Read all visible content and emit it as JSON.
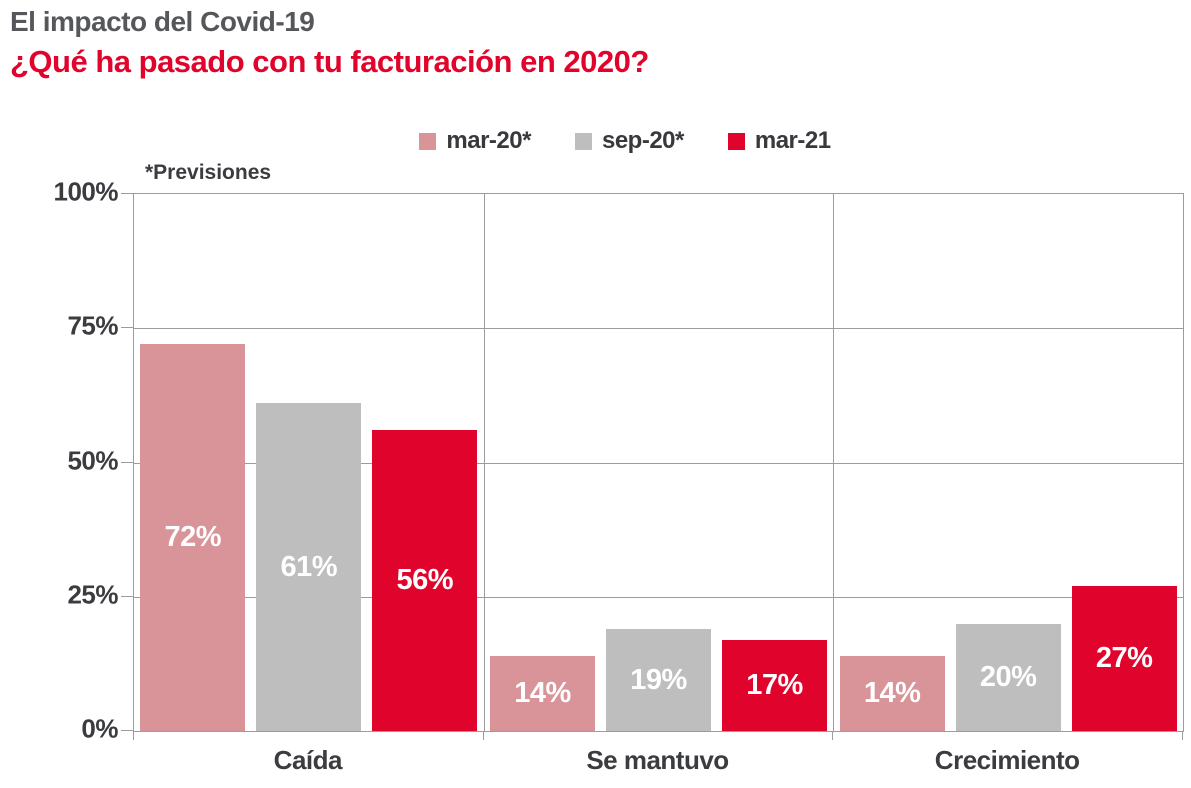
{
  "header": {
    "title": "El impacto del Covid-19",
    "subtitle": "¿Qué ha pasado con tu facturación en 2020?"
  },
  "chart_data": {
    "type": "bar",
    "title": "¿Qué ha pasado con tu facturación en 2020?",
    "note": "*Previsiones",
    "categories": [
      "Caída",
      "Se mantuvo",
      "Crecimiento"
    ],
    "series": [
      {
        "name": "mar-20*",
        "color": "#d9949a",
        "values": [
          72,
          14,
          14
        ]
      },
      {
        "name": "sep-20*",
        "color": "#bebebe",
        "values": [
          61,
          19,
          20
        ]
      },
      {
        "name": "mar-21",
        "color": "#e0042c",
        "values": [
          56,
          17,
          27
        ]
      }
    ],
    "value_suffix": "%",
    "y_axis": {
      "min": 0,
      "max": 100,
      "ticks": [
        "100%",
        "75%",
        "50%",
        "25%",
        "0%"
      ]
    },
    "legend_position": "top",
    "grid": true,
    "colors": {
      "accent_red": "#e0042c",
      "muted_pink": "#d9949a",
      "neutral_gray": "#bebebe",
      "grid_line": "#9c9c9c",
      "title_gray": "#56575b",
      "axis_text": "#3b3c40",
      "bar_label": "#ffffff"
    }
  }
}
